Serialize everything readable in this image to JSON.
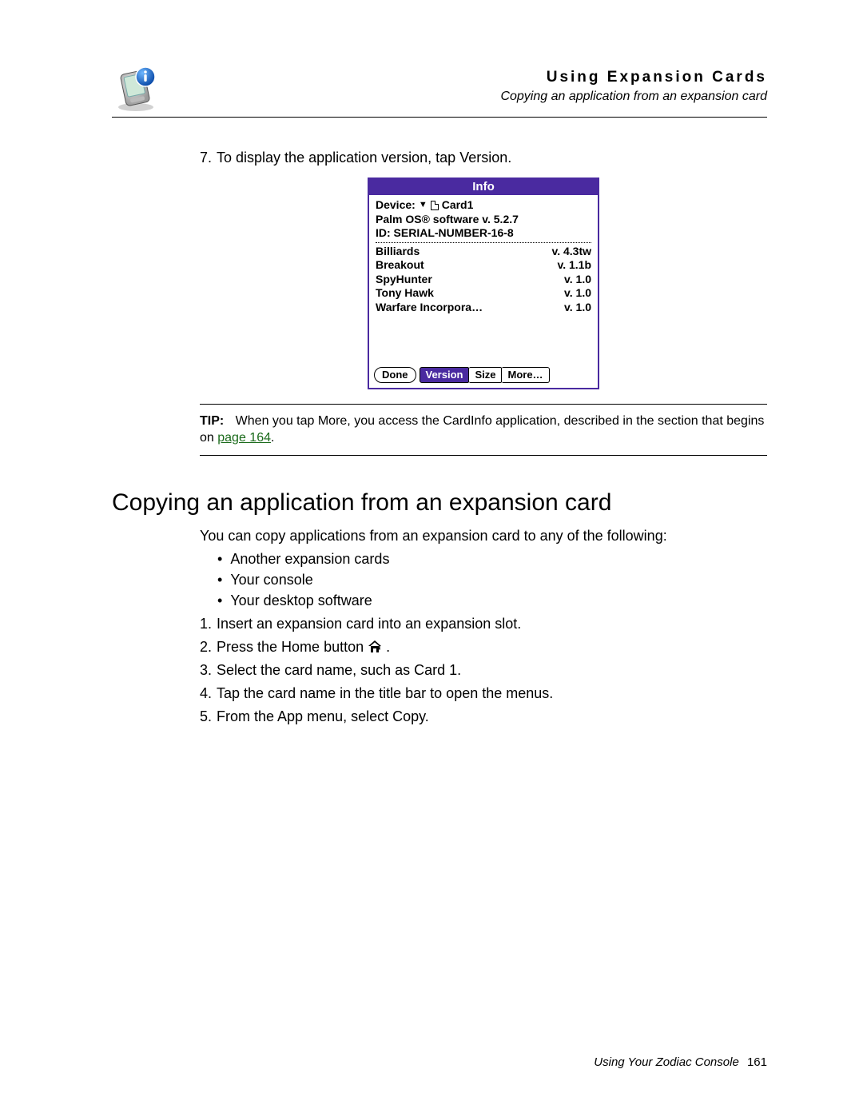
{
  "header": {
    "chapter": "Using Expansion Cards",
    "subtitle": "Copying an application from an expansion card"
  },
  "step7": {
    "num": "7.",
    "text": "To display the application version, tap Version."
  },
  "palm": {
    "title": "Info",
    "device_label": "Device:",
    "device_value": "Card1",
    "os_line": "Palm OS® software v. 5.2.7",
    "id_line": "ID: SERIAL-NUMBER-16-8",
    "apps": [
      {
        "name": "Billiards",
        "ver": "v. 4.3tw"
      },
      {
        "name": "Breakout",
        "ver": "v. 1.1b"
      },
      {
        "name": "SpyHunter",
        "ver": "v. 1.0"
      },
      {
        "name": "Tony Hawk",
        "ver": "v. 1.0"
      },
      {
        "name": "Warfare Incorpora…",
        "ver": "v. 1.0"
      }
    ],
    "buttons": {
      "done": "Done",
      "version": "Version",
      "size": "Size",
      "more": "More…"
    },
    "colors": {
      "accent": "#4a2aa0",
      "bg": "#ffffff"
    }
  },
  "tip": {
    "label": "TIP:",
    "text_before": "When you tap More, you access the CardInfo application, described in the section that begins on ",
    "link_text": "page 164",
    "text_after": "."
  },
  "section": {
    "heading": "Copying an application from an expansion card",
    "intro": "You can copy applications from an expansion card to any of the following:",
    "bullets": [
      "Another expansion cards",
      "Your console",
      "Your desktop software"
    ],
    "steps": [
      {
        "num": "1.",
        "text": "Insert an expansion card into an expansion slot."
      },
      {
        "num": "2.",
        "text_before": "Press the Home button ",
        "home_icon": true,
        "text_after": "."
      },
      {
        "num": "3.",
        "text": "Select the card name, such as Card 1."
      },
      {
        "num": "4.",
        "text": "Tap the card name in the title bar to open the menus."
      },
      {
        "num": "5.",
        "text": "From the App menu, select Copy."
      }
    ]
  },
  "footer": {
    "title": "Using Your Zodiac Console",
    "page": "161"
  }
}
